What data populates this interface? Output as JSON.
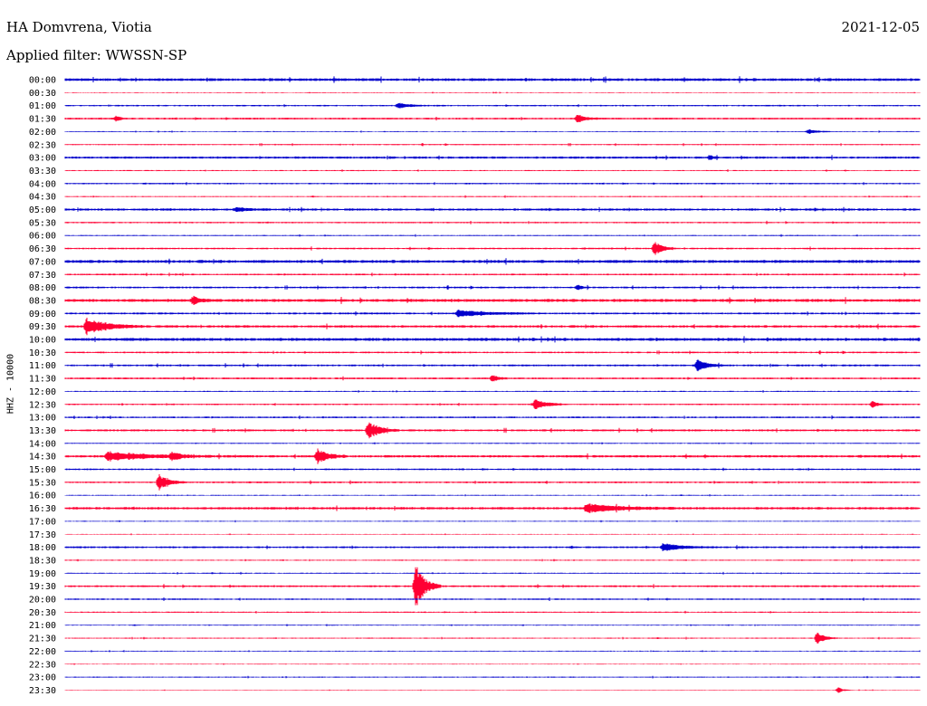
{
  "header": {
    "station": "HA Domvrena, Viotia",
    "date": "2021-12-05",
    "filter_label": "Applied filter: WWSSN-SP"
  },
  "chart_data": {
    "type": "line",
    "title": "HA Domvrena, Viotia",
    "ylabel": "HHZ - 10000",
    "colors": [
      "#0000cc",
      "#ff0033"
    ],
    "rows": [
      "00:00",
      "00:30",
      "01:00",
      "01:30",
      "02:00",
      "02:30",
      "03:00",
      "03:30",
      "04:00",
      "04:30",
      "05:00",
      "05:30",
      "06:00",
      "06:30",
      "07:00",
      "07:30",
      "08:00",
      "08:30",
      "09:00",
      "09:30",
      "10:00",
      "10:30",
      "11:00",
      "11:30",
      "12:00",
      "12:30",
      "13:00",
      "13:30",
      "14:00",
      "14:30",
      "15:00",
      "15:30",
      "16:00",
      "16:30",
      "17:00",
      "17:30",
      "18:00",
      "18:30",
      "19:00",
      "19:30",
      "20:00",
      "20:30",
      "21:00",
      "21:30",
      "22:00",
      "22:30",
      "23:00",
      "23:30"
    ],
    "noise": [
      1.5,
      0.4,
      0.8,
      1.0,
      0.5,
      0.7,
      1.2,
      0.6,
      0.8,
      0.6,
      1.2,
      0.8,
      0.6,
      0.9,
      1.6,
      0.9,
      1.0,
      1.6,
      1.0,
      1.3,
      1.6,
      0.9,
      1.0,
      1.0,
      0.6,
      0.8,
      0.9,
      1.1,
      0.6,
      1.3,
      0.9,
      0.9,
      0.5,
      1.3,
      0.5,
      0.4,
      1.0,
      0.6,
      0.6,
      1.0,
      0.8,
      0.7,
      0.5,
      0.6,
      0.5,
      0.4,
      0.6,
      0.4
    ],
    "events": [
      {
        "row": 2,
        "pos": 0.39,
        "amp": 3,
        "dur": 0.012
      },
      {
        "row": 3,
        "pos": 0.06,
        "amp": 3,
        "dur": 0.004
      },
      {
        "row": 3,
        "pos": 0.6,
        "amp": 5,
        "dur": 0.008
      },
      {
        "row": 4,
        "pos": 0.87,
        "amp": 2.5,
        "dur": 0.01
      },
      {
        "row": 6,
        "pos": 0.755,
        "amp": 3,
        "dur": 0.003
      },
      {
        "row": 10,
        "pos": 0.2,
        "amp": 2,
        "dur": 0.015
      },
      {
        "row": 13,
        "pos": 0.69,
        "amp": 8,
        "dur": 0.008
      },
      {
        "row": 16,
        "pos": 0.6,
        "amp": 3,
        "dur": 0.005
      },
      {
        "row": 17,
        "pos": 0.15,
        "amp": 5,
        "dur": 0.006
      },
      {
        "row": 18,
        "pos": 0.46,
        "amp": 4,
        "dur": 0.03
      },
      {
        "row": 19,
        "pos": 0.025,
        "amp": 9,
        "dur": 0.022
      },
      {
        "row": 22,
        "pos": 0.74,
        "amp": 7,
        "dur": 0.01
      },
      {
        "row": 23,
        "pos": 0.5,
        "amp": 4,
        "dur": 0.006
      },
      {
        "row": 25,
        "pos": 0.55,
        "amp": 6,
        "dur": 0.012
      },
      {
        "row": 25,
        "pos": 0.945,
        "amp": 4,
        "dur": 0.005
      },
      {
        "row": 27,
        "pos": 0.355,
        "amp": 10,
        "dur": 0.012
      },
      {
        "row": 29,
        "pos": 0.05,
        "amp": 5,
        "dur": 0.04
      },
      {
        "row": 29,
        "pos": 0.125,
        "amp": 5,
        "dur": 0.008
      },
      {
        "row": 29,
        "pos": 0.295,
        "amp": 8,
        "dur": 0.012
      },
      {
        "row": 31,
        "pos": 0.11,
        "amp": 9,
        "dur": 0.01
      },
      {
        "row": 33,
        "pos": 0.61,
        "amp": 5,
        "dur": 0.035
      },
      {
        "row": 36,
        "pos": 0.7,
        "amp": 4,
        "dur": 0.02
      },
      {
        "row": 39,
        "pos": 0.41,
        "amp": 26,
        "dur": 0.01
      },
      {
        "row": 43,
        "pos": 0.88,
        "amp": 7,
        "dur": 0.008
      },
      {
        "row": 47,
        "pos": 0.905,
        "amp": 3,
        "dur": 0.005
      }
    ]
  }
}
